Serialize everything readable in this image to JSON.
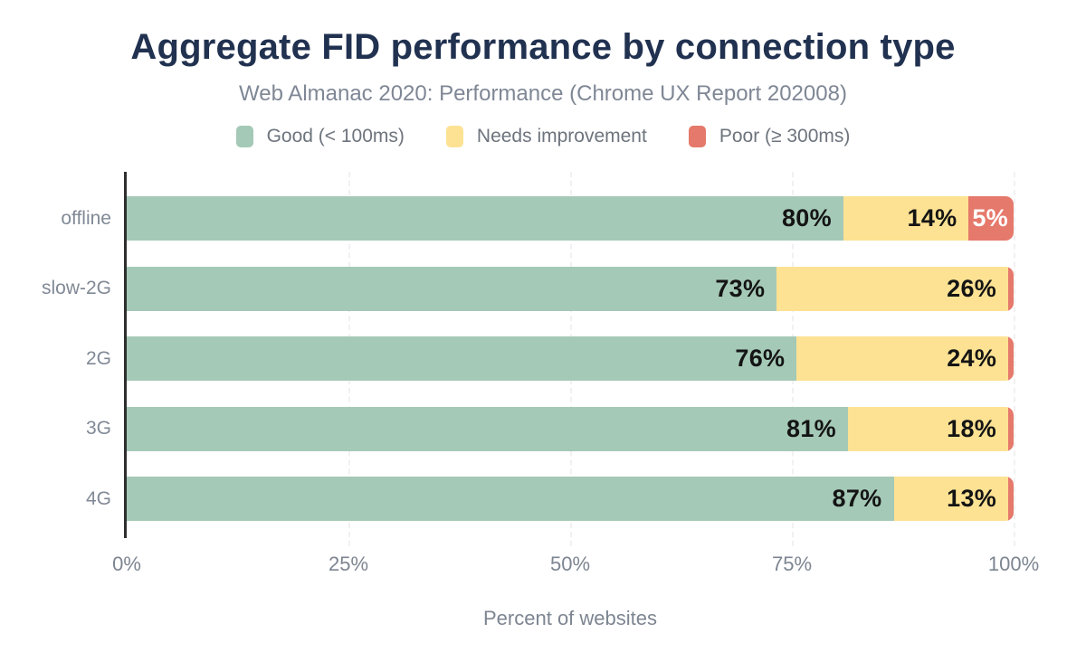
{
  "header": {
    "title": "Aggregate FID performance by connection type",
    "subtitle": "Web Almanac 2020: Performance (Chrome UX Report 202008)"
  },
  "legend": [
    {
      "label": "Good (< 100ms)",
      "color": "#a5c9b7"
    },
    {
      "label": "Needs improvement",
      "color": "#fde293"
    },
    {
      "label": "Poor (≥ 300ms)",
      "color": "#e5796b"
    }
  ],
  "colors": {
    "title": "#213150",
    "axis_line": "#2e2e2e",
    "text_muted": "#7f8795",
    "data_label_dark": "#141414",
    "data_label_light": "#ffffff"
  },
  "chart_data": {
    "type": "bar",
    "stacked": true,
    "orientation": "horizontal",
    "title": "Aggregate FID performance by connection type",
    "subtitle": "Web Almanac 2020: Performance (Chrome UX Report 202008)",
    "categories": [
      "offline",
      "slow-2G",
      "2G",
      "3G",
      "4G"
    ],
    "series": [
      {
        "name": "Good (< 100ms)",
        "color": "#a5c9b7",
        "label_color": "#141414",
        "values": [
          80,
          73,
          76,
          81,
          87
        ]
      },
      {
        "name": "Needs improvement",
        "color": "#fde293",
        "label_color": "#141414",
        "values": [
          14,
          26,
          24,
          18,
          13
        ]
      },
      {
        "name": "Poor (≥ 300ms)",
        "color": "#e5796b",
        "label_color": "#ffffff",
        "values": [
          5,
          0.6,
          0.6,
          0.6,
          0.6
        ]
      }
    ],
    "data_labels": [
      [
        "80%",
        "14%",
        "5%"
      ],
      [
        "73%",
        "26%",
        ""
      ],
      [
        "76%",
        "24%",
        ""
      ],
      [
        "81%",
        "18%",
        ""
      ],
      [
        "87%",
        "13%",
        ""
      ]
    ],
    "xlabel": "Percent of websites",
    "x_ticks": [
      {
        "label": "0%",
        "value": 0
      },
      {
        "label": "25%",
        "value": 25
      },
      {
        "label": "50%",
        "value": 50
      },
      {
        "label": "75%",
        "value": 75
      },
      {
        "label": "100%",
        "value": 100
      }
    ],
    "xlim": [
      0,
      100
    ],
    "grid": "vertical-dashed",
    "legend_position": "top"
  }
}
